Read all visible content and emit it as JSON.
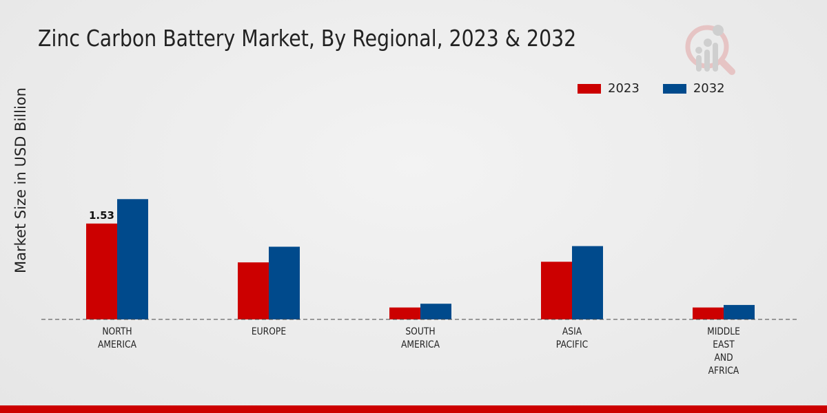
{
  "chart_data": {
    "type": "bar",
    "title": "Zinc Carbon Battery Market, By Regional, 2023 & 2032",
    "xlabel": "",
    "ylabel": "Market Size in USD Billion",
    "ylim": [
      0,
      4
    ],
    "grid": false,
    "legend_position": "top-right",
    "categories": [
      [
        "NORTH",
        "AMERICA"
      ],
      [
        "EUROPE"
      ],
      [
        "SOUTH",
        "AMERICA"
      ],
      [
        "ASIA",
        "PACIFIC"
      ],
      [
        "MIDDLE",
        "EAST",
        "AND",
        "AFRICA"
      ]
    ],
    "series": [
      {
        "name": "2023",
        "color": "#cc0000",
        "values": [
          1.53,
          0.91,
          0.19,
          0.92,
          0.19
        ]
      },
      {
        "name": "2032",
        "color": "#004a8c",
        "values": [
          1.92,
          1.16,
          0.25,
          1.17,
          0.23
        ]
      }
    ],
    "data_labels": [
      {
        "series": 0,
        "category": 0,
        "text": "1.53"
      }
    ]
  }
}
